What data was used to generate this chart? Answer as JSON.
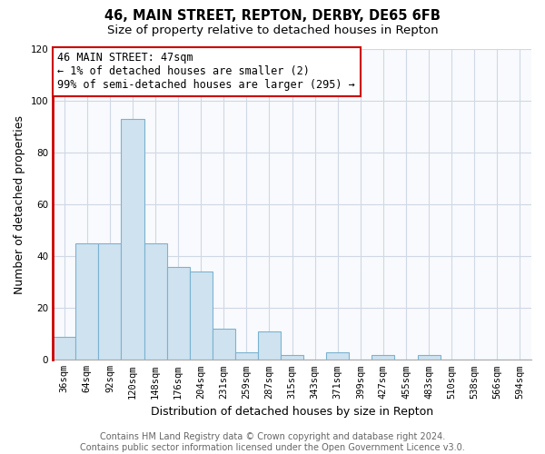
{
  "title": "46, MAIN STREET, REPTON, DERBY, DE65 6FB",
  "subtitle": "Size of property relative to detached houses in Repton",
  "xlabel": "Distribution of detached houses by size in Repton",
  "ylabel": "Number of detached properties",
  "bar_labels": [
    "36sqm",
    "64sqm",
    "92sqm",
    "120sqm",
    "148sqm",
    "176sqm",
    "204sqm",
    "231sqm",
    "259sqm",
    "287sqm",
    "315sqm",
    "343sqm",
    "371sqm",
    "399sqm",
    "427sqm",
    "455sqm",
    "483sqm",
    "510sqm",
    "538sqm",
    "566sqm",
    "594sqm"
  ],
  "bar_values": [
    9,
    45,
    45,
    93,
    45,
    36,
    34,
    12,
    3,
    11,
    2,
    0,
    3,
    0,
    2,
    0,
    2,
    0,
    0,
    0,
    0
  ],
  "bar_color": "#cfe2f0",
  "bar_edge_color": "#7ab3d0",
  "highlight_color": "#cc0000",
  "annotation_text": "46 MAIN STREET: 47sqm\n← 1% of detached houses are smaller (2)\n99% of semi-detached houses are larger (295) →",
  "annotation_box_color": "#ffffff",
  "annotation_box_edge": "#cc0000",
  "ylim": [
    0,
    120
  ],
  "yticks": [
    0,
    20,
    40,
    60,
    80,
    100,
    120
  ],
  "footer_text": "Contains HM Land Registry data © Crown copyright and database right 2024.\nContains public sector information licensed under the Open Government Licence v3.0.",
  "title_fontsize": 10.5,
  "subtitle_fontsize": 9.5,
  "xlabel_fontsize": 9,
  "ylabel_fontsize": 9,
  "tick_fontsize": 7.5,
  "footer_fontsize": 7,
  "annotation_fontsize": 8.5,
  "grid_color": "#d0d8e4"
}
